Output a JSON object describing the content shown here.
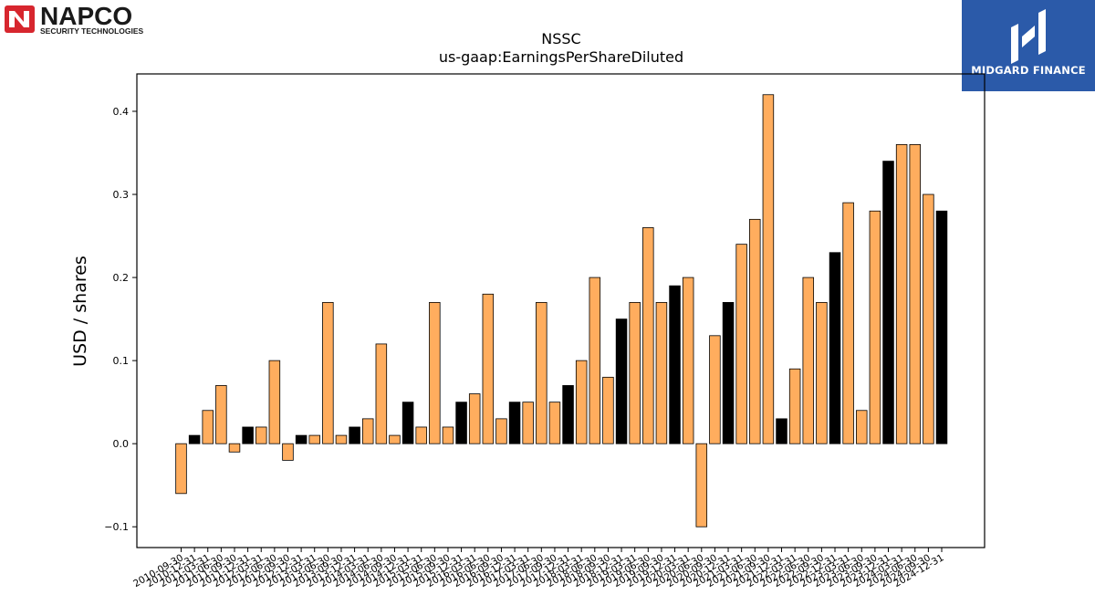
{
  "brand_left": {
    "name": "NAPCO",
    "tagline": "SECURITY TECHNOLOGIES"
  },
  "brand_right": {
    "name": "MIDGARD FINANCE",
    "color": "#2b5aa9"
  },
  "colors": {
    "positive_bar": "#ffad5e",
    "highlight_bar": "#000000"
  },
  "chart_data": {
    "type": "bar",
    "title": "NSSC",
    "subtitle": "us-gaap:EarningsPerShareDiluted",
    "ylabel": "USD / shares",
    "ylim": [
      -0.125,
      0.445
    ],
    "yticks": [
      -0.1,
      0.0,
      0.1,
      0.2,
      0.3,
      0.4
    ],
    "yticks_labels": [
      "−0.1",
      "0.0",
      "0.1",
      "0.2",
      "0.3",
      "0.4"
    ],
    "grid": false,
    "categories": [
      "2010-09-30",
      "2010-12-31",
      "2011-03-31",
      "2011-06-30",
      "2011-09-30",
      "2011-12-31",
      "2012-03-31",
      "2012-06-30",
      "2012-09-30",
      "2012-12-31",
      "2013-03-31",
      "2013-06-30",
      "2013-09-30",
      "2013-12-31",
      "2014-03-31",
      "2014-06-30",
      "2014-09-30",
      "2014-12-31",
      "2015-03-31",
      "2015-06-30",
      "2015-09-30",
      "2015-12-31",
      "2016-03-31",
      "2016-06-30",
      "2016-09-30",
      "2016-12-31",
      "2017-03-31",
      "2017-06-30",
      "2017-09-30",
      "2017-12-31",
      "2018-03-31",
      "2018-06-30",
      "2018-09-30",
      "2018-12-31",
      "2019-03-31",
      "2019-06-30",
      "2019-09-30",
      "2019-12-31",
      "2020-03-31",
      "2020-06-30",
      "2020-09-30",
      "2020-12-31",
      "2021-03-31",
      "2021-06-30",
      "2021-09-30",
      "2021-12-31",
      "2022-03-31",
      "2022-06-30",
      "2022-09-30",
      "2022-12-31",
      "2023-03-31",
      "2023-06-30",
      "2023-09-30",
      "2023-12-31",
      "2024-03-31",
      "2024-06-30",
      "2024-09-30",
      "2024-12-31"
    ],
    "values": [
      -0.06,
      0.01,
      0.04,
      0.07,
      -0.01,
      0.02,
      0.02,
      0.1,
      -0.02,
      0.01,
      0.01,
      0.17,
      0.01,
      0.02,
      0.03,
      0.12,
      0.01,
      0.05,
      0.02,
      0.17,
      0.02,
      0.05,
      0.06,
      0.18,
      0.03,
      0.05,
      0.05,
      0.17,
      0.05,
      0.07,
      0.1,
      0.2,
      0.08,
      0.15,
      0.17,
      0.26,
      0.17,
      0.19,
      0.2,
      -0.1,
      0.13,
      0.17,
      0.24,
      0.27,
      0.42,
      0.03,
      0.09,
      0.2,
      0.17,
      0.23,
      0.29,
      0.04,
      0.28,
      0.34,
      0.36,
      0.36,
      0.3,
      0.28
    ],
    "highlight": [
      false,
      true,
      false,
      false,
      false,
      true,
      false,
      false,
      false,
      true,
      false,
      false,
      false,
      true,
      false,
      false,
      false,
      true,
      false,
      false,
      false,
      true,
      false,
      false,
      false,
      true,
      false,
      false,
      false,
      true,
      false,
      false,
      false,
      true,
      false,
      false,
      false,
      true,
      false,
      false,
      false,
      true,
      false,
      false,
      false,
      true,
      false,
      false,
      false,
      true,
      false,
      false,
      false,
      true,
      false,
      false,
      false,
      true
    ]
  }
}
